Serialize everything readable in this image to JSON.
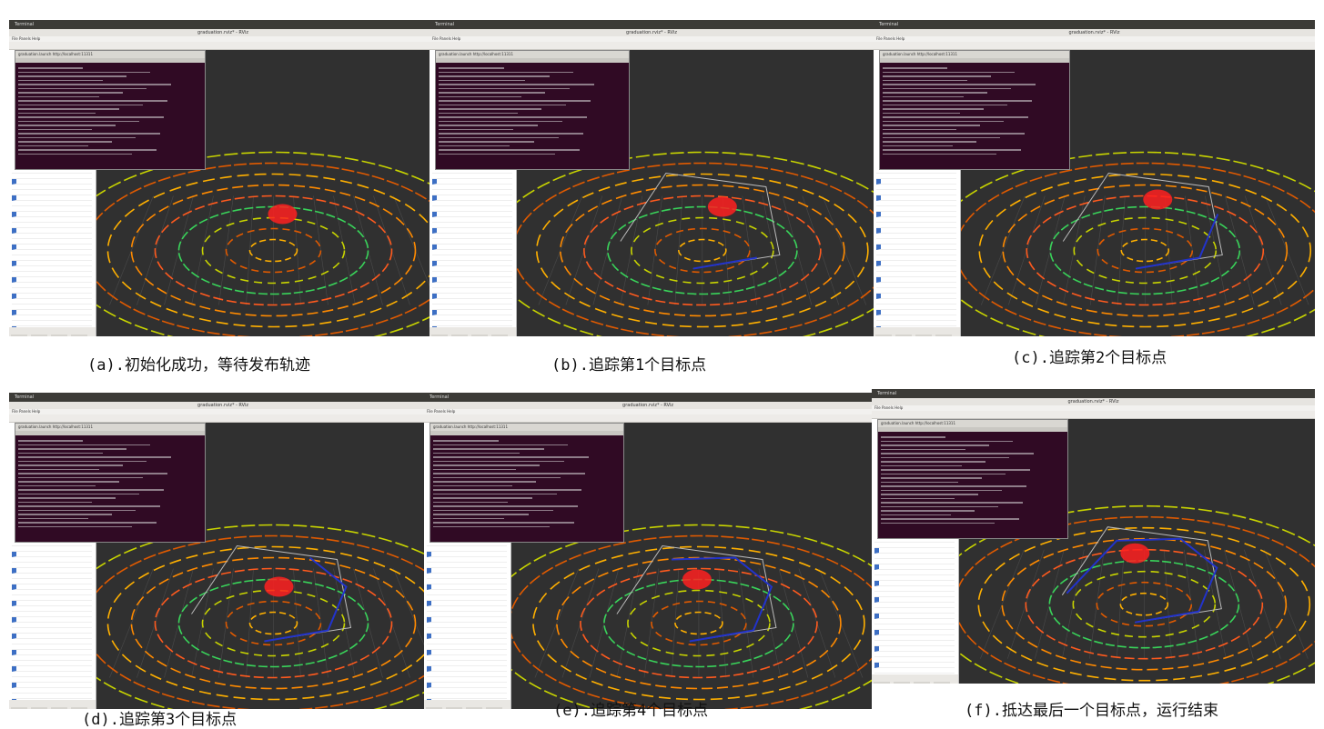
{
  "panels": [
    {
      "id": "a",
      "topbar": "Terminal",
      "title": "graduation.rviz* - RViz",
      "menu": "File  Panels  Help",
      "terminal_title": "graduation.launch http://localhost:11311"
    },
    {
      "id": "b",
      "topbar": "Terminal",
      "title": "graduation.rviz* - RViz",
      "menu": "File  Panels  Help",
      "terminal_title": "graduation.launch http://localhost:11311"
    },
    {
      "id": "c",
      "topbar": "Terminal",
      "title": "graduation.rviz* - RViz",
      "menu": "File  Panels  Help",
      "terminal_title": "graduation.launch http://localhost:11311"
    },
    {
      "id": "d",
      "topbar": "Terminal",
      "title": "graduation.rviz* - RViz",
      "menu": "File  Panels  Help",
      "terminal_title": "graduation.launch http://localhost:11311"
    },
    {
      "id": "e",
      "topbar": "Terminal",
      "title": "graduation.rviz* - RViz",
      "menu": "File  Panels  Help",
      "terminal_title": "graduation.launch http://localhost:11311"
    },
    {
      "id": "f",
      "topbar": "Terminal",
      "title": "graduation.rviz* - RViz",
      "menu": "File  Panels  Help",
      "terminal_title": "graduation.launch http://localhost:11311"
    }
  ],
  "captions": {
    "a": "(a).初始化成功，等待发布轨迹",
    "b": "(b).追踪第1个目标点",
    "c": "(c).追踪第2个目标点",
    "d": "(d).追踪第3个目标点",
    "e": "(e).追踪第4个目标点",
    "f": "(f).抵达最后一个目标点，运行结束"
  },
  "colors": {
    "viewport_bg": "#303030",
    "terminal_bg": "#300a24",
    "path_blue": "#2233cc",
    "robot_red": "#ff2020"
  }
}
